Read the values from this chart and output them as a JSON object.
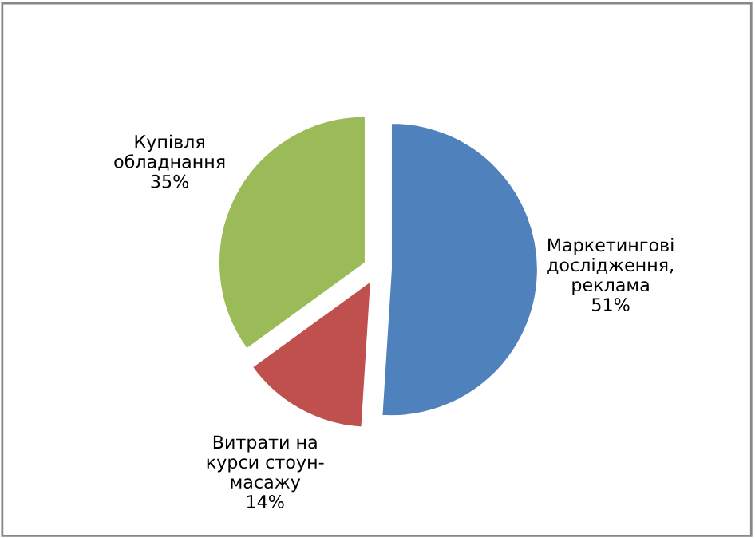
{
  "chart_data": {
    "type": "pie",
    "categories": [
      "Маркетингові\nдослідження,\nреклама",
      "Витрати на\nкурси стоун-\nмасажу",
      "Купівля\nобладнання"
    ],
    "values": [
      51,
      14,
      35
    ],
    "value_labels": [
      "51%",
      "14%",
      "35%"
    ],
    "colors": [
      "#4f81bd",
      "#c0504d",
      "#9bbb59"
    ]
  }
}
